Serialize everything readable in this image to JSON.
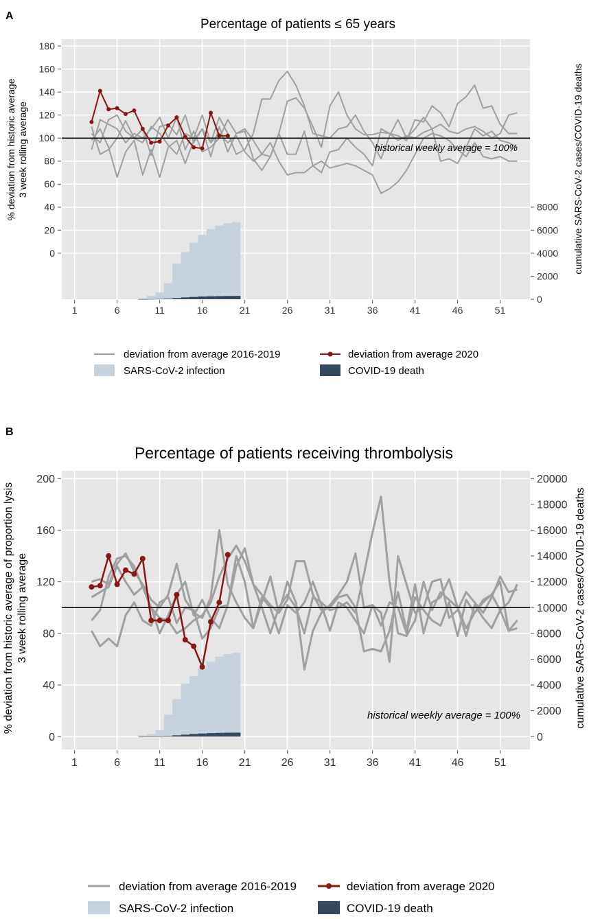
{
  "chart_data": [
    {
      "panel": "A",
      "type": "line",
      "title": "Percentage of patients ≤ 65 years",
      "ylabel_left_line1": "% deviation from historic average",
      "ylabel_left_line2": "3 week rolling average",
      "ylabel_right": "cumulative SARS-CoV-2 cases/COVID-19 deaths",
      "reference_label": "historical weekly average = 100%",
      "xlim": [
        -0.5,
        54.5
      ],
      "ylim_left": [
        -40,
        186
      ],
      "x_ticks": [
        1,
        6,
        11,
        16,
        21,
        26,
        31,
        36,
        41,
        46,
        51
      ],
      "y_ticks_left": [
        0,
        20,
        40,
        60,
        80,
        100,
        120,
        140,
        160,
        180
      ],
      "y_ticks_right": [
        0,
        2000,
        4000,
        6000,
        8000
      ],
      "right_axis_map": {
        "left_at_zero_right": -40,
        "left_per_unit_right": 0.01
      },
      "reference": 100,
      "historic_series": [
        {
          "name": "2016",
          "x_start": 3,
          "values": [
            110,
            86,
            90,
            100,
            115,
            100,
            108,
            85,
            110,
            112,
            103,
            120,
            96,
            108,
            84,
            110,
            88,
            104,
            106,
            82,
            72,
            84,
            104,
            132,
            135,
            126,
            110,
            92,
            128,
            140,
            120,
            108,
            103,
            103,
            105,
            104,
            98,
            102,
            100,
            105,
            108,
            112,
            106,
            104,
            108,
            110,
            106,
            100,
            104,
            120,
            122
          ]
        },
        {
          "name": "2017",
          "x_start": 3,
          "values": [
            98,
            108,
            92,
            66,
            88,
            98,
            68,
            90,
            66,
            92,
            98,
            78,
            98,
            108,
            96,
            118,
            104,
            86,
            90,
            104,
            134,
            134,
            150,
            158,
            146,
            128,
            104,
            102,
            100,
            108,
            110,
            120,
            106,
            96,
            82,
            102,
            116,
            100,
            108,
            118,
            108,
            80,
            82,
            78,
            92,
            108,
            102,
            106,
            98,
            96,
            92
          ]
        },
        {
          "name": "2018",
          "x_start": 3,
          "values": [
            90,
            116,
            112,
            108,
            96,
            104,
            100,
            108,
            118,
            100,
            118,
            90,
            106,
            88,
            92,
            100,
            116,
            104,
            108,
            98,
            86,
            84,
            104,
            86,
            86,
            106,
            76,
            70,
            88,
            90,
            100,
            92,
            86,
            76,
            108,
            104,
            102,
            98,
            116,
            114,
            128,
            122,
            110,
            130,
            136,
            146,
            126,
            128,
            112,
            104,
            104
          ]
        },
        {
          "name": "2019",
          "x_start": 3,
          "values": [
            104,
            96,
            116,
            120,
            106,
            100,
            96,
            110,
            104,
            94,
            86,
            104,
            100,
            120,
            96,
            104,
            96,
            102,
            88,
            80,
            86,
            96,
            80,
            68,
            70,
            70,
            76,
            80,
            74,
            76,
            78,
            76,
            72,
            68,
            52,
            56,
            62,
            72,
            86,
            100,
            104,
            102,
            98,
            90,
            84,
            96,
            84,
            82,
            84,
            80,
            80
          ]
        }
      ],
      "series_2020": {
        "name": "2020",
        "x_start": 3,
        "values": [
          114,
          141,
          125,
          126,
          121,
          124,
          108,
          96,
          97,
          111,
          118,
          101,
          92,
          91,
          122,
          102,
          102
        ]
      },
      "cases": {
        "x_start": 9,
        "values": [
          100,
          300,
          600,
          1400,
          3100,
          4100,
          4900,
          5600,
          6100,
          6400,
          6600,
          6700
        ]
      },
      "deaths": {
        "x_start": 9,
        "values": [
          2,
          10,
          25,
          50,
          100,
          160,
          200,
          240,
          260,
          275,
          285,
          290
        ]
      },
      "legend": {
        "historic": "deviation from average 2016-2019",
        "current": "deviation from average 2020",
        "cases": "SARS-CoV-2 infection",
        "deaths": "COVID-19 death"
      },
      "colors": {
        "panel_bg": "#e6e6e6",
        "grid": "#ffffff",
        "historic": "#a0a0a0",
        "current": "#8b1414",
        "cases": "#c6d3df",
        "deaths": "#34495e"
      }
    },
    {
      "panel": "B",
      "type": "line",
      "title": "Percentage of patients receiving thrombolysis",
      "ylabel_left_line1": "% deviation from historic average of proportion lysis",
      "ylabel_left_line2": "3 week rolling average",
      "ylabel_right": "cumulative SARS-CoV-2 cases/COVID-19 deaths",
      "reference_label": "historical weekly average = 100%",
      "xlim": [
        -0.5,
        54.5
      ],
      "ylim_left": [
        -10,
        206
      ],
      "x_ticks": [
        1,
        6,
        11,
        16,
        21,
        26,
        31,
        36,
        41,
        46,
        51
      ],
      "y_ticks_left": [
        0,
        40,
        80,
        120,
        160,
        200
      ],
      "y_ticks_right": [
        0,
        2000,
        4000,
        6000,
        8000,
        10000,
        12000,
        14000,
        16000,
        18000,
        20000
      ],
      "right_axis_map": {
        "left_at_zero_right": 0,
        "left_per_unit_right": 0.01
      },
      "reference": 100,
      "historic_series": [
        {
          "name": "2016",
          "x_start": 3,
          "values": [
            120,
            122,
            118,
            134,
            142,
            128,
            118,
            106,
            100,
            110,
            134,
            106,
            96,
            92,
            108,
            160,
            118,
            104,
            92,
            84,
            104,
            124,
            96,
            120,
            104,
            52,
            82,
            96,
            102,
            110,
            120,
            142,
            100,
            102,
            96,
            58,
            140,
            118,
            96,
            100,
            120,
            122,
            92,
            98,
            112,
            104,
            96,
            108,
            124,
            112,
            114
          ]
        },
        {
          "name": "2017",
          "x_start": 3,
          "values": [
            108,
            112,
            116,
            132,
            120,
            110,
            116,
            100,
            80,
            94,
            110,
            120,
            94,
            106,
            92,
            84,
            102,
            132,
            146,
            118,
            110,
            102,
            96,
            106,
            136,
            136,
            110,
            98,
            100,
            108,
            110,
            100,
            66,
            68,
            66,
            82,
            112,
            82,
            118,
            80,
            104,
            108,
            122,
            100,
            78,
            102,
            92,
            84,
            98,
            104,
            118
          ]
        },
        {
          "name": "2018",
          "x_start": 3,
          "values": [
            90,
            98,
            124,
            138,
            140,
            132,
            116,
            100,
            92,
            90,
            80,
            84,
            90,
            94,
            104,
            124,
            138,
            148,
            136,
            118,
            100,
            80,
            100,
            110,
            100,
            80,
            108,
            104,
            98,
            100,
            104,
            96,
            126,
            158,
            186,
            120,
            80,
            78,
            90,
            120,
            98,
            112,
            106,
            100,
            84,
            96,
            104,
            110,
            120,
            82,
            84
          ]
        },
        {
          "name": "2019",
          "x_start": 3,
          "values": [
            82,
            70,
            76,
            70,
            94,
            104,
            90,
            86,
            104,
            108,
            88,
            100,
            98,
            76,
            84,
            100,
            102,
            140,
            120,
            84,
            108,
            100,
            80,
            102,
            96,
            104,
            120,
            102,
            82,
            104,
            100,
            90,
            80,
            102,
            86,
            104,
            100,
            80,
            108,
            98,
            90,
            86,
            104,
            78,
            106,
            96,
            106,
            110,
            98,
            82,
            90
          ]
        }
      ],
      "series_2020": {
        "name": "2020",
        "x_start": 3,
        "values": [
          116,
          117,
          140,
          118,
          129,
          126,
          138,
          90,
          90,
          90,
          110,
          75,
          70,
          54,
          89,
          104,
          141
        ]
      },
      "cases": {
        "x_start": 9,
        "values": [
          100,
          200,
          500,
          1700,
          2900,
          4100,
          4700,
          5300,
          5800,
          6200,
          6400,
          6500
        ]
      },
      "deaths": {
        "x_start": 9,
        "values": [
          2,
          5,
          10,
          40,
          100,
          150,
          200,
          240,
          270,
          290,
          300,
          305
        ]
      },
      "legend": {
        "historic": "deviation from average 2016-2019",
        "current": "deviation from average 2020",
        "cases": "SARS-CoV-2 infection",
        "deaths": "COVID-19 death"
      },
      "colors": {
        "panel_bg": "#e6e6e6",
        "grid": "#ffffff",
        "historic": "#a0a0a0",
        "current": "#8b1414",
        "cases": "#c6d3df",
        "deaths": "#34495e"
      }
    }
  ]
}
